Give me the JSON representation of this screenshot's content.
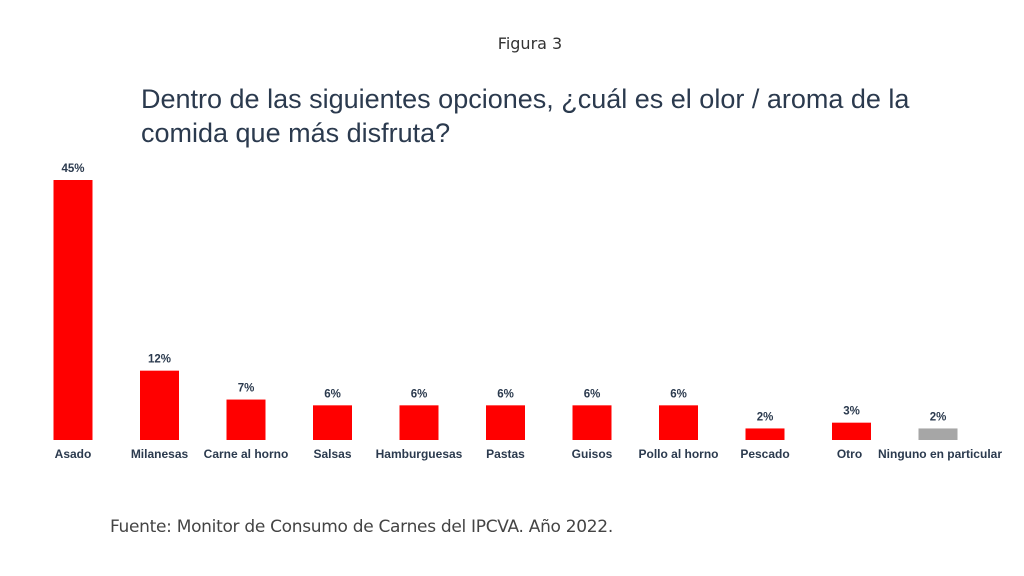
{
  "figure_label": "Figura 3",
  "source": "Fuente: Monitor de Consumo de Carnes del IPCVA. Año 2022.",
  "chart_data": {
    "type": "bar",
    "title": "Dentro de las siguientes opciones, ¿cuál es el olor / aroma de la comida que más disfruta?",
    "xlabel": "",
    "ylabel": "",
    "ylim": [
      0,
      45
    ],
    "grid": false,
    "legend": "none",
    "categories": [
      "Asado",
      "Milanesas",
      "Carne al horno",
      "Salsas",
      "Hamburguesas",
      "Pastas",
      "Guisos",
      "Pollo al horno",
      "Pescado",
      "Otro",
      "Ninguno en particular"
    ],
    "values": [
      45,
      12,
      7,
      6,
      6,
      6,
      6,
      6,
      2,
      3,
      2
    ],
    "value_labels": [
      "45%",
      "12%",
      "7%",
      "6%",
      "6%",
      "6%",
      "6%",
      "6%",
      "2%",
      "3%",
      "2%"
    ],
    "colors": [
      "#ff0000",
      "#ff0000",
      "#ff0000",
      "#ff0000",
      "#ff0000",
      "#ff0000",
      "#ff0000",
      "#ff0000",
      "#ff0000",
      "#ff0000",
      "#a6a6a6"
    ]
  }
}
